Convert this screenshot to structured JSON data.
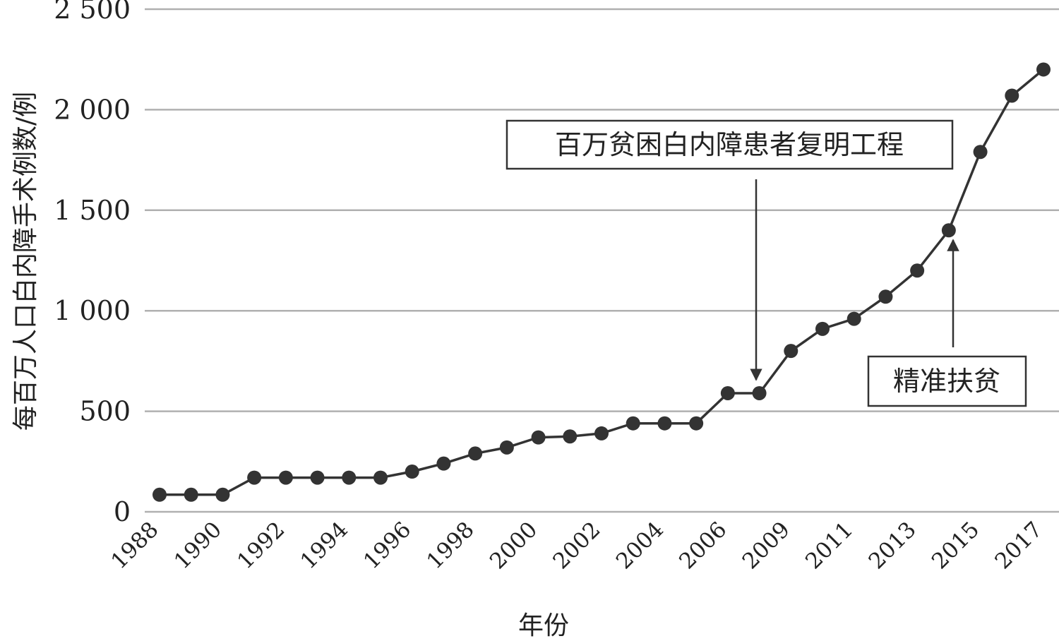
{
  "chart_data": {
    "type": "line",
    "xlabel": "年份",
    "ylabel": "每百万人口白内障手术例数/例",
    "ylim": [
      0,
      2500
    ],
    "yticks": [
      0,
      500,
      1000,
      1500,
      2000,
      2500
    ],
    "ytick_labels": [
      "0",
      "500",
      "1 000",
      "1 500",
      "2 000",
      "2 500"
    ],
    "grid": true,
    "x": [
      "1988",
      "1989",
      "1990",
      "1991",
      "1992",
      "1993",
      "1994",
      "1995",
      "1996",
      "1997",
      "1998",
      "1999",
      "2000",
      "2001",
      "2002",
      "2003",
      "2004",
      "2005",
      "2006",
      "2007",
      "2009",
      "2010",
      "2011",
      "2012",
      "2013",
      "2014",
      "2015",
      "2016",
      "2017"
    ],
    "xtick_labels": [
      "1988",
      "",
      "1990",
      "",
      "1992",
      "",
      "1994",
      "",
      "1996",
      "",
      "1998",
      "",
      "2000",
      "",
      "2002",
      "",
      "2004",
      "",
      "2006",
      "",
      "2009",
      "",
      "2011",
      "",
      "2013",
      "",
      "2015",
      "",
      "2017"
    ],
    "series": [
      {
        "values": [
          85,
          85,
          85,
          170,
          170,
          170,
          170,
          170,
          200,
          240,
          290,
          320,
          370,
          375,
          390,
          440,
          440,
          440,
          590,
          590,
          800,
          910,
          960,
          1070,
          1200,
          1400,
          1790,
          2070,
          2200
        ]
      }
    ],
    "annotations": [
      {
        "text": "百万贫困白内障患者复明工程",
        "target": "2007"
      },
      {
        "text": "精准扶贫",
        "target": "2014"
      }
    ]
  }
}
